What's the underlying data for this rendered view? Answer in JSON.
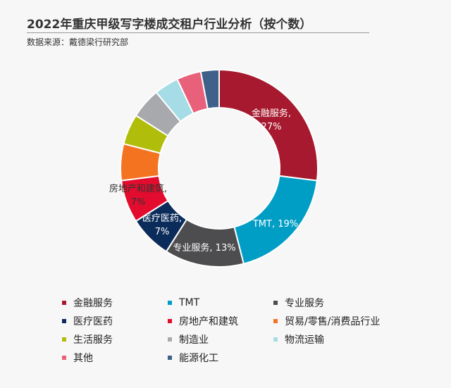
{
  "header": {
    "title": "2022年重庆甲级写字楼成交租户行业分析（按个数）",
    "source": "数据来源：戴德梁行研究部"
  },
  "chart_data": {
    "type": "pie",
    "variant": "donut",
    "title": "2022年重庆甲级写字楼成交租户行业分析（按个数）",
    "slices": [
      {
        "name": "金融服务",
        "value": 27,
        "label": "金融服务,",
        "pct_label": "27%",
        "color": "#a6192e"
      },
      {
        "name": "TMT",
        "value": 19,
        "label": "TMT, 19%",
        "pct_label": "",
        "color": "#009ec5"
      },
      {
        "name": "专业服务",
        "value": 13,
        "label": "专业服务, 13%",
        "pct_label": "",
        "color": "#4d4d4f"
      },
      {
        "name": "医疗医药",
        "value": 7,
        "label": "医疗医药,",
        "pct_label": "7%",
        "color": "#0b2c5a"
      },
      {
        "name": "房地产和建筑",
        "value": 7,
        "label": "房地产和建筑,",
        "pct_label": "7%",
        "color": "#e30c2e"
      },
      {
        "name": "贸易/零售/消费品行业",
        "value": 6,
        "label": "",
        "pct_label": "",
        "color": "#f47321"
      },
      {
        "name": "生活服务",
        "value": 5,
        "label": "",
        "pct_label": "",
        "color": "#b0bd0b"
      },
      {
        "name": "制造业",
        "value": 5,
        "label": "",
        "pct_label": "",
        "color": "#a7a9ac"
      },
      {
        "name": "物流运输",
        "value": 4,
        "label": "",
        "pct_label": "",
        "color": "#a6dce6"
      },
      {
        "name": "其他",
        "value": 4,
        "label": "",
        "pct_label": "",
        "color": "#e8607a"
      },
      {
        "name": "能源化工",
        "value": 3,
        "label": "",
        "pct_label": "",
        "color": "#3d6189"
      }
    ],
    "legend": {
      "placement": "bottom",
      "items": [
        "金融服务",
        "TMT",
        "专业服务",
        "医疗医药",
        "房地产和建筑",
        "贸易/零售/消费品行业",
        "生活服务",
        "制造业",
        "物流运输",
        "其他",
        "能源化工"
      ]
    }
  }
}
